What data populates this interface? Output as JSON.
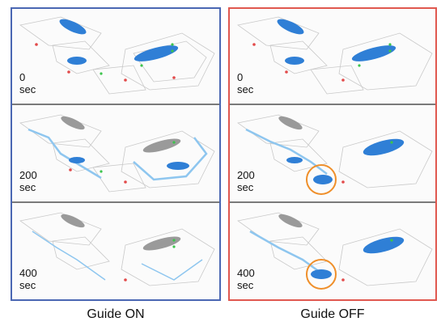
{
  "columns": [
    {
      "caption": "Guide ON",
      "frame_color": "#4a67b3",
      "rows": [
        {
          "time_value": "0",
          "time_unit": "sec"
        },
        {
          "time_value": "200",
          "time_unit": "sec"
        },
        {
          "time_value": "400",
          "time_unit": "sec"
        }
      ]
    },
    {
      "caption": "Guide OFF",
      "frame_color": "#e0584f",
      "rows": [
        {
          "time_value": "0",
          "time_unit": "sec"
        },
        {
          "time_value": "200",
          "time_unit": "sec"
        },
        {
          "time_value": "400",
          "time_unit": "sec"
        }
      ]
    }
  ],
  "colors": {
    "crowd_blue": "#2f7fd6",
    "trail_light_blue": "#8ec6ef",
    "crowd_gray": "#9a9a9a",
    "exit_green": "#3cc44c",
    "marker_red": "#e24a4a",
    "highlight_circle": "#ef8f2a"
  },
  "icons": {
    "highlight": "circle-outline"
  }
}
